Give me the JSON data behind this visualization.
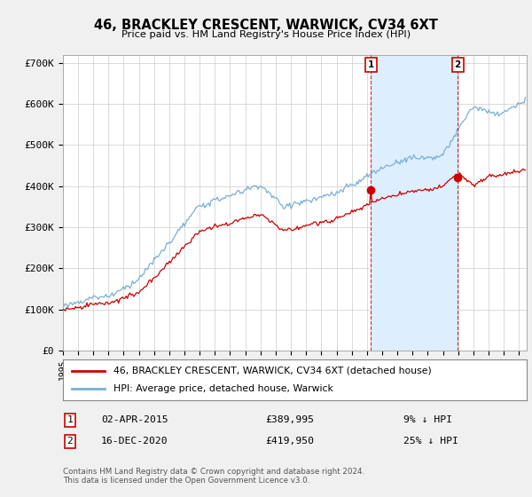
{
  "title": "46, BRACKLEY CRESCENT, WARWICK, CV34 6XT",
  "subtitle": "Price paid vs. HM Land Registry's House Price Index (HPI)",
  "hpi_color": "#7ab0d4",
  "price_color": "#cc0000",
  "shade_color": "#ddeeff",
  "background_color": "#f0f0f0",
  "plot_bg_color": "#ffffff",
  "ylim": [
    0,
    720000
  ],
  "yticks": [
    0,
    100000,
    200000,
    300000,
    400000,
    500000,
    600000,
    700000
  ],
  "ytick_labels": [
    "£0",
    "£100K",
    "£200K",
    "£300K",
    "£400K",
    "£500K",
    "£600K",
    "£700K"
  ],
  "legend_label_price": "46, BRACKLEY CRESCENT, WARWICK, CV34 6XT (detached house)",
  "legend_label_hpi": "HPI: Average price, detached house, Warwick",
  "annotation1_date": "02-APR-2015",
  "annotation1_price": "£389,995",
  "annotation1_pct": "9% ↓ HPI",
  "annotation2_date": "16-DEC-2020",
  "annotation2_price": "£419,950",
  "annotation2_pct": "25% ↓ HPI",
  "footer": "Contains HM Land Registry data © Crown copyright and database right 2024.\nThis data is licensed under the Open Government Licence v3.0.",
  "marker1_x": 2015.25,
  "marker1_y": 389995,
  "marker2_x": 2020.96,
  "marker2_y": 419950,
  "xmin": 1995.0,
  "xmax": 2025.5
}
